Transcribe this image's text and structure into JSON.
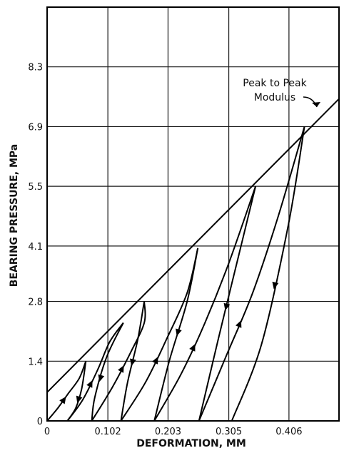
{
  "chart_data": {
    "type": "line",
    "title": "",
    "xlabel": "DEFORMATION, MM",
    "ylabel": "BEARING PRESSURE, MPa",
    "xlim": [
      0,
      0.49
    ],
    "ylim": [
      0,
      9.7
    ],
    "x_ticks": [
      0,
      0.102,
      0.203,
      0.305,
      0.406
    ],
    "x_tick_labels": [
      "0",
      "0.102",
      "0.203",
      "0.305",
      "0.406"
    ],
    "y_ticks": [
      0,
      1.4,
      2.8,
      4.1,
      5.5,
      6.9,
      8.3
    ],
    "y_tick_labels": [
      "0",
      "1.4",
      "2.8",
      "4.1",
      "5.5",
      "6.9",
      "8.3"
    ],
    "grid": true,
    "annotation": {
      "text_lines": [
        "Peak to Peak",
        "Modulus"
      ],
      "points_to": [
        0.437,
        6.9
      ]
    },
    "modulus_line": [
      [
        0,
        0.67
      ],
      [
        0.49,
        7.55
      ]
    ],
    "series": [
      {
        "loop": 1,
        "loading": [
          [
            0,
            0
          ],
          [
            0.018,
            0.3
          ],
          [
            0.036,
            0.65
          ],
          [
            0.054,
            1.0
          ],
          [
            0.065,
            1.4
          ]
        ],
        "unloading": [
          [
            0.065,
            1.4
          ],
          [
            0.058,
            0.75
          ],
          [
            0.048,
            0.3
          ],
          [
            0.034,
            0
          ]
        ]
      },
      {
        "loop": 2,
        "loading": [
          [
            0.034,
            0
          ],
          [
            0.06,
            0.5
          ],
          [
            0.085,
            1.2
          ],
          [
            0.105,
            1.85
          ],
          [
            0.128,
            2.3
          ]
        ],
        "unloading": [
          [
            0.128,
            2.3
          ],
          [
            0.1,
            1.5
          ],
          [
            0.08,
            0.55
          ],
          [
            0.075,
            0
          ]
        ]
      },
      {
        "loop": 3,
        "loading": [
          [
            0.075,
            0
          ],
          [
            0.11,
            0.8
          ],
          [
            0.14,
            1.6
          ],
          [
            0.163,
            2.3
          ],
          [
            0.163,
            2.8
          ]
        ],
        "unloading": [
          [
            0.163,
            2.8
          ],
          [
            0.152,
            1.9
          ],
          [
            0.135,
            0.9
          ],
          [
            0.124,
            0
          ]
        ]
      },
      {
        "loop": 4,
        "loading": [
          [
            0.124,
            0
          ],
          [
            0.165,
            0.9
          ],
          [
            0.2,
            1.9
          ],
          [
            0.235,
            3.0
          ],
          [
            0.253,
            4.05
          ]
        ],
        "unloading": [
          [
            0.253,
            4.05
          ],
          [
            0.235,
            2.8
          ],
          [
            0.205,
            1.4
          ],
          [
            0.18,
            0
          ]
        ]
      },
      {
        "loop": 5,
        "loading": [
          [
            0.18,
            0
          ],
          [
            0.225,
            1.1
          ],
          [
            0.265,
            2.3
          ],
          [
            0.305,
            3.7
          ],
          [
            0.35,
            5.5
          ]
        ],
        "unloading": [
          [
            0.35,
            5.5
          ],
          [
            0.315,
            3.5
          ],
          [
            0.287,
            1.9
          ],
          [
            0.255,
            0
          ]
        ]
      },
      {
        "loop": 6,
        "loading": [
          [
            0.255,
            0
          ],
          [
            0.3,
            1.5
          ],
          [
            0.345,
            3.0
          ],
          [
            0.388,
            4.8
          ],
          [
            0.432,
            6.9
          ]
        ],
        "unloading": [
          [
            0.432,
            6.9
          ],
          [
            0.405,
            4.6
          ],
          [
            0.36,
            1.8
          ],
          [
            0.31,
            0
          ]
        ]
      }
    ]
  }
}
